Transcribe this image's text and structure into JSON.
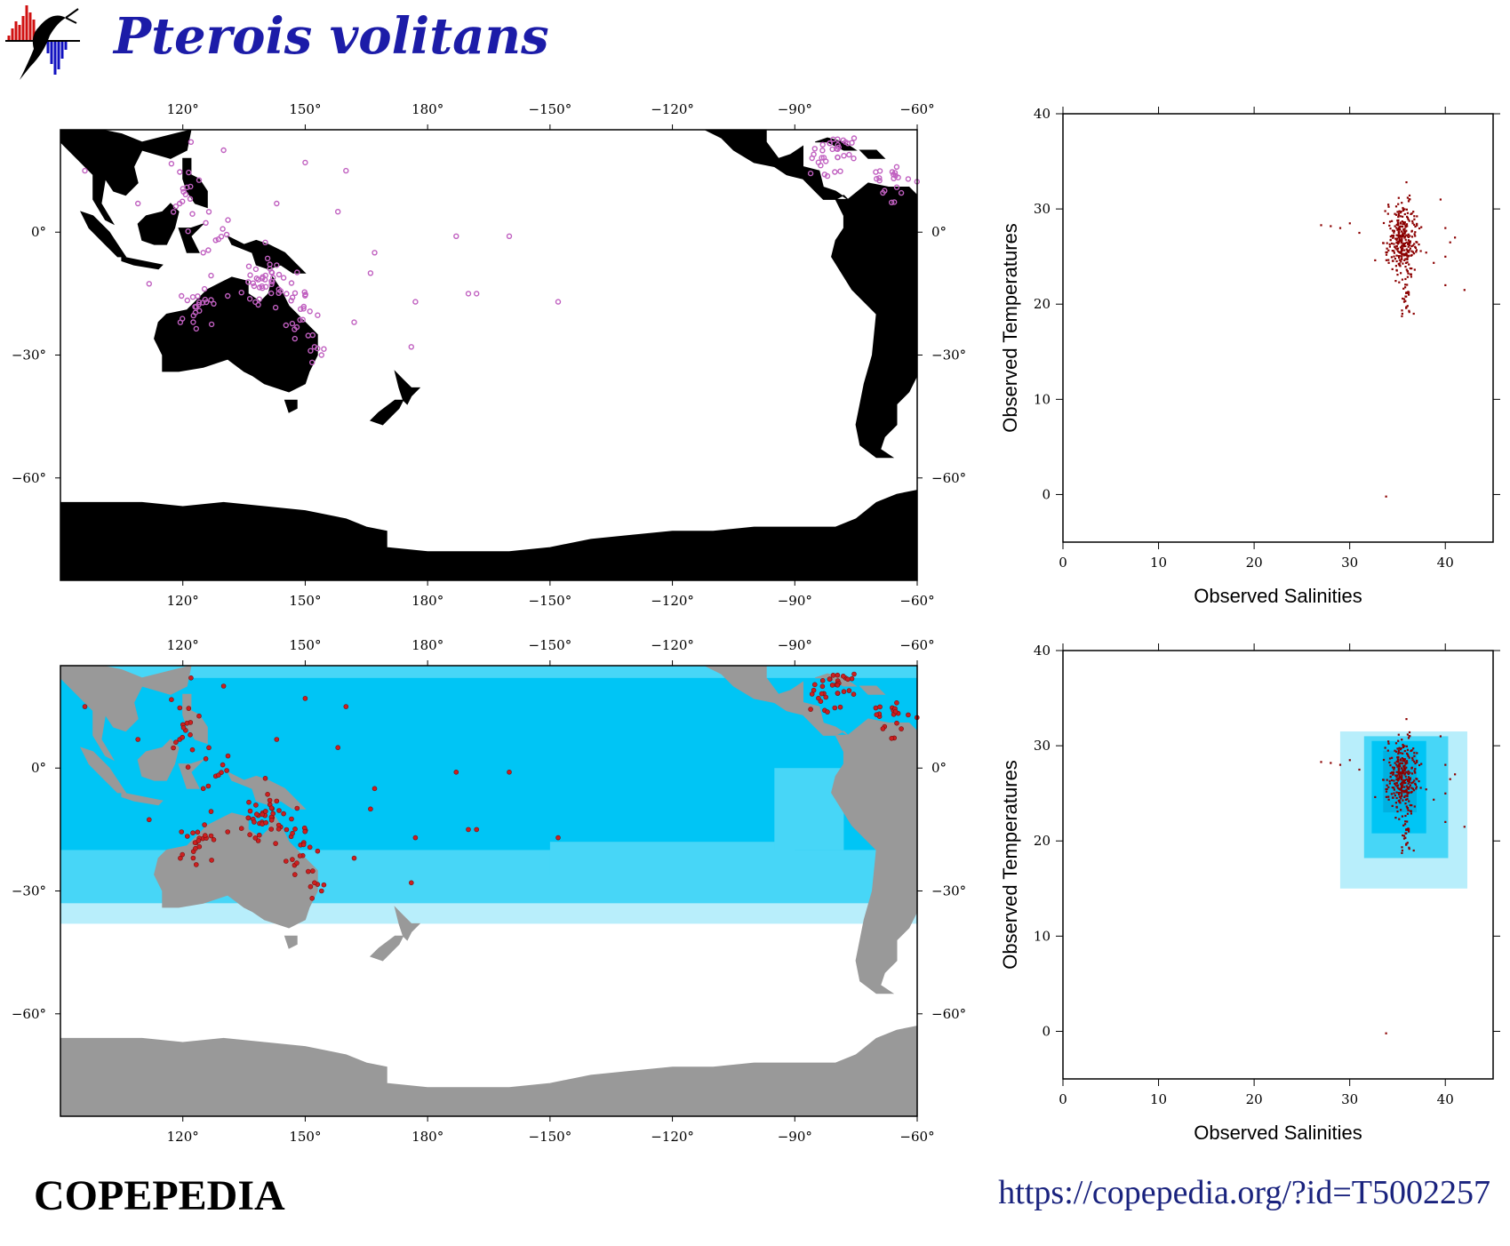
{
  "header": {
    "title": "Pterois volitans"
  },
  "footer": {
    "brand": "COPEPEDIA",
    "url": "https://copepedia.org/?id=T5002257"
  },
  "colors": {
    "title": "#1c1ca8",
    "land_map1": "#000000",
    "land_map2": "#999999",
    "ocean_deep": "#00c5f5",
    "ocean_mid": "#47d6f7",
    "ocean_light": "#b8eefb",
    "occurrence_open": "#c060c0",
    "occurrence_filled": "#cc2020",
    "ts_points": "#8b0000"
  },
  "chart_data": [
    {
      "type": "scatter",
      "name": "occurrence-map-top",
      "xlabel": "",
      "ylabel": "",
      "x_ticks": [
        "120°",
        "150°",
        "180°",
        "−150°",
        "−120°",
        "−90°",
        "−60°"
      ],
      "y_ticks": [
        "0°",
        "−30°",
        "−60°"
      ]
    },
    {
      "type": "scatter",
      "name": "occurrence-map-bottom",
      "xlabel": "",
      "ylabel": "",
      "x_ticks": [
        "120°",
        "150°",
        "180°",
        "−150°",
        "−120°",
        "−90°",
        "−60°"
      ],
      "y_ticks": [
        "0°",
        "−30°",
        "−60°"
      ]
    },
    {
      "type": "scatter",
      "xlabel": "Observed Salinities",
      "ylabel": "Observed Temperatures",
      "xlim": [
        0,
        45
      ],
      "ylim": [
        -5,
        40
      ],
      "x_ticks": [
        "0",
        "10",
        "20",
        "30",
        "40"
      ],
      "y_ticks": [
        "0",
        "10",
        "20",
        "30",
        "40"
      ],
      "clusters": [
        {
          "x": 35.5,
          "y": 27,
          "sx": 0.8,
          "sy": 2.0,
          "n": 300
        },
        {
          "x": 36,
          "y": 21,
          "sx": 0.3,
          "sy": 1.5,
          "n": 30
        }
      ],
      "points": [
        [
          27,
          28.3
        ],
        [
          28,
          28.2
        ],
        [
          29,
          28.0
        ],
        [
          30,
          28.5
        ],
        [
          31,
          27.5
        ],
        [
          34,
          29.5
        ],
        [
          39.5,
          31.0
        ],
        [
          40,
          28
        ],
        [
          40.5,
          26.5
        ],
        [
          41,
          27
        ],
        [
          40,
          25
        ],
        [
          40,
          22
        ],
        [
          42,
          21.5
        ],
        [
          33.8,
          -0.2
        ],
        [
          35.5,
          19
        ]
      ]
    },
    {
      "type": "scatter",
      "xlabel": "Observed Salinities",
      "ylabel": "Observed Temperatures",
      "xlim": [
        0,
        45
      ],
      "ylim": [
        -5,
        40
      ],
      "x_ticks": [
        "0",
        "10",
        "20",
        "30",
        "40"
      ],
      "y_ticks": [
        "0",
        "10",
        "20",
        "30",
        "40"
      ],
      "envelopes": [
        {
          "x": [
            29,
            42.3
          ],
          "y": [
            15,
            31.5
          ],
          "color": "#b8eefb"
        },
        {
          "x": [
            31.5,
            40.3
          ],
          "y": [
            18.2,
            31
          ],
          "color": "#47d6f7"
        },
        {
          "x": [
            32.3,
            38
          ],
          "y": [
            20.8,
            30.5
          ],
          "color": "#00c5f5"
        },
        {
          "x": [
            33.5,
            37
          ],
          "y": [
            23,
            29.5
          ],
          "color": "#00b0e0"
        }
      ],
      "clusters": [
        {
          "x": 35.5,
          "y": 27,
          "sx": 0.8,
          "sy": 2.0,
          "n": 300
        },
        {
          "x": 36,
          "y": 21,
          "sx": 0.3,
          "sy": 1.5,
          "n": 30
        }
      ],
      "points": [
        [
          27,
          28.3
        ],
        [
          28,
          28.2
        ],
        [
          29,
          28.0
        ],
        [
          30,
          28.5
        ],
        [
          31,
          27.5
        ],
        [
          34,
          29.5
        ],
        [
          39.5,
          31.0
        ],
        [
          40,
          28
        ],
        [
          40.5,
          26.5
        ],
        [
          41,
          27
        ],
        [
          40,
          25
        ],
        [
          40,
          22
        ],
        [
          42,
          21.5
        ],
        [
          33.8,
          -0.2
        ],
        [
          35.5,
          19
        ]
      ]
    }
  ]
}
